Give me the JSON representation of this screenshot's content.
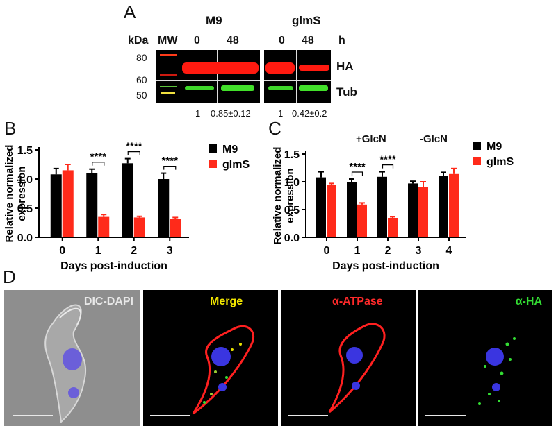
{
  "panelA": {
    "label": "A",
    "groups": [
      "M9",
      "glmS"
    ],
    "kda_label": "kDa",
    "mw_label": "MW",
    "time_unit": "h",
    "times": [
      "0",
      "48",
      "0",
      "48"
    ],
    "mw_markers": [
      "80",
      "60",
      "50"
    ],
    "band_labels": [
      "HA",
      "Tub"
    ],
    "quant": [
      "1",
      "0.85±0.12",
      "1",
      "0.42±0.2"
    ]
  },
  "panelB": {
    "label": "B"
  },
  "panelC": {
    "label": "C",
    "annot_plus": "+GlcN",
    "annot_minus": "-GlcN"
  },
  "panelD": {
    "label": "D",
    "titles": [
      "DIC-DAPI",
      "Merge",
      "α-ATPase",
      "α-HA"
    ],
    "title_colors": [
      "#e8e8e8",
      "#f2e600",
      "#ff2a2a",
      "#33dd33"
    ]
  },
  "chart_data": [
    {
      "type": "bar",
      "panel": "B",
      "categories": [
        "0",
        "1",
        "2",
        "3"
      ],
      "series": [
        {
          "name": "M9",
          "color": "#000000",
          "values": [
            1.08,
            1.1,
            1.27,
            1.0
          ],
          "errors": [
            0.1,
            0.07,
            0.08,
            0.1
          ]
        },
        {
          "name": "glmS",
          "color": "#ff2a1a",
          "values": [
            1.15,
            0.35,
            0.34,
            0.31
          ],
          "errors": [
            0.1,
            0.04,
            0.02,
            0.03
          ]
        }
      ],
      "significance": [
        {
          "category": "1",
          "label": "****"
        },
        {
          "category": "2",
          "label": "****"
        },
        {
          "category": "3",
          "label": "****"
        }
      ],
      "xlabel": "Days post-induction",
      "ylabel": "Relative normalized expression",
      "ylim": [
        0,
        1.5
      ],
      "yticks": [
        "0.0",
        "0.5",
        "1.0",
        "1.5"
      ],
      "legend": "right"
    },
    {
      "type": "bar",
      "panel": "C",
      "categories": [
        "0",
        "1",
        "2",
        "3",
        "4"
      ],
      "series": [
        {
          "name": "M9",
          "color": "#000000",
          "values": [
            1.08,
            1.0,
            1.09,
            0.97,
            1.1
          ],
          "errors": [
            0.1,
            0.05,
            0.09,
            0.04,
            0.07
          ]
        },
        {
          "name": "glmS",
          "color": "#ff2a1a",
          "values": [
            0.94,
            0.59,
            0.35,
            0.91,
            1.14
          ],
          "errors": [
            0.03,
            0.03,
            0.02,
            0.09,
            0.1
          ]
        }
      ],
      "significance": [
        {
          "category": "1",
          "label": "****"
        },
        {
          "category": "2",
          "label": "****"
        }
      ],
      "xlabel": "Days post-induction",
      "ylabel": "Relative normalized expression",
      "ylim": [
        0,
        1.5
      ],
      "yticks": [
        "0.0",
        "0.5",
        "1.0",
        "1.5"
      ],
      "legend": "right"
    }
  ]
}
